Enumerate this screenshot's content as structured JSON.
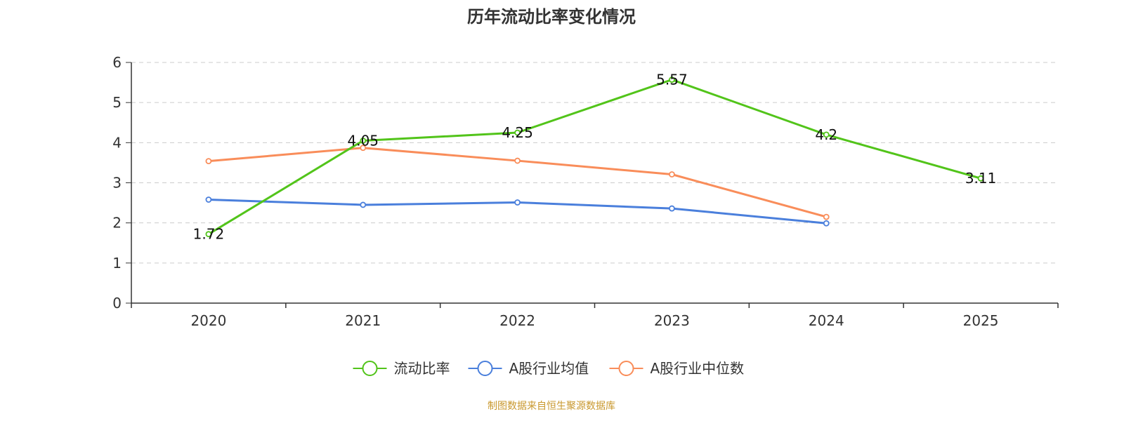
{
  "chart_data": {
    "type": "line",
    "title": "历年流动比率变化情况",
    "categories": [
      "2020",
      "2021",
      "2022",
      "2023",
      "2024",
      "2025"
    ],
    "ylim": [
      0,
      6
    ],
    "yticks": [
      "0",
      "1",
      "2",
      "3",
      "4",
      "5",
      "6"
    ],
    "grid": true,
    "legend_position": "bottom-center",
    "series": [
      {
        "name": "流动比率",
        "color": "#52c41a",
        "values": [
          1.72,
          4.05,
          4.25,
          5.57,
          4.2,
          3.11
        ],
        "labels": [
          "1.72",
          "4.05",
          "4.25",
          "5.57",
          "4.2",
          "3.11"
        ]
      },
      {
        "name": "A股行业均值",
        "color": "#4a7fdc",
        "values": [
          2.58,
          2.45,
          2.51,
          2.36,
          1.99,
          null
        ]
      },
      {
        "name": "A股行业中位数",
        "color": "#f98d5a",
        "values": [
          3.54,
          3.87,
          3.55,
          3.21,
          2.15,
          null
        ]
      }
    ]
  },
  "source_text": "制图数据来自恒生聚源数据库"
}
